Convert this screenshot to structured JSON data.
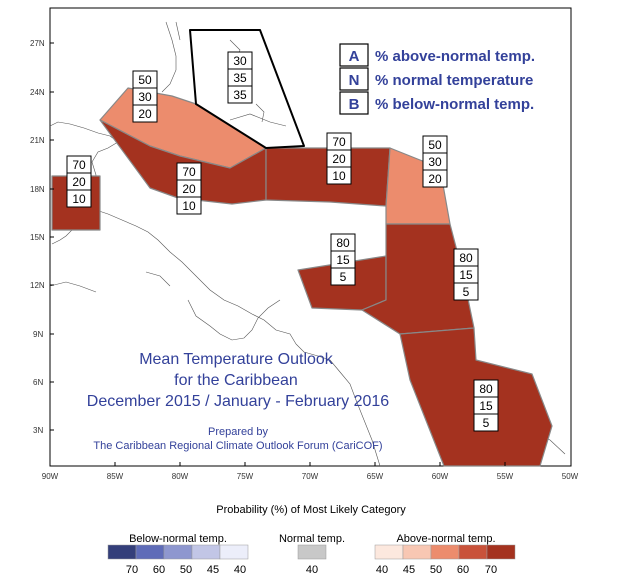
{
  "map": {
    "title_lines": [
      "Mean Temperature Outlook",
      "for the Caribbean",
      "December 2015 / January - February 2016"
    ],
    "prepared_by": [
      "Prepared by",
      "The Caribbean Regional Climate Outlook Forum (CariCOF)"
    ],
    "key": [
      {
        "letter": "A",
        "text": "% above-normal temp."
      },
      {
        "letter": "N",
        "text": "% normal temperature"
      },
      {
        "letter": "B",
        "text": "% below-normal temp."
      }
    ],
    "lat_ticks": [
      "27N",
      "24N",
      "21N",
      "18N",
      "15N",
      "12N",
      "9N",
      "6N",
      "3N"
    ],
    "lon_ticks": [
      "90W",
      "85W",
      "80W",
      "75W",
      "70W",
      "65W",
      "60W",
      "55W",
      "50W"
    ],
    "probability_boxes": [
      {
        "region": "bahamas-north",
        "values": [
          "30",
          "35",
          "35"
        ]
      },
      {
        "region": "cuba-bahamas-south",
        "values": [
          "50",
          "30",
          "20"
        ]
      },
      {
        "region": "belize",
        "values": [
          "70",
          "20",
          "10"
        ]
      },
      {
        "region": "jamaica-cayman",
        "values": [
          "70",
          "20",
          "10"
        ]
      },
      {
        "region": "hispaniola-puerto-rico",
        "values": [
          "70",
          "20",
          "10"
        ]
      },
      {
        "region": "northern-leewards",
        "values": [
          "50",
          "30",
          "20"
        ]
      },
      {
        "region": "abc-islands",
        "values": [
          "80",
          "15",
          "5"
        ]
      },
      {
        "region": "windwards-trinidad",
        "values": [
          "80",
          "15",
          "5"
        ]
      },
      {
        "region": "guianas",
        "values": [
          "80",
          "15",
          "5"
        ]
      }
    ]
  },
  "legend": {
    "title": "Probability (%) of Most Likely Category",
    "groups": [
      {
        "label": "Below-normal temp.",
        "values": [
          "70",
          "60",
          "50",
          "45",
          "40"
        ],
        "colors": [
          "#343f7a",
          "#5f6cb8",
          "#8e97cf",
          "#c2c6e6",
          "#eceefa"
        ]
      },
      {
        "label": "Normal temp.",
        "values": [
          "40"
        ],
        "colors": [
          "#c8c8c8"
        ]
      },
      {
        "label": "Above-normal temp.",
        "values": [
          "40",
          "45",
          "50",
          "60",
          "70"
        ],
        "colors": [
          "#fce8de",
          "#f8c7b3",
          "#ec8c6d",
          "#c9523a",
          "#a4321f"
        ]
      }
    ]
  },
  "colors": {
    "above70": "#a4321f",
    "above50": "#ec8c6d",
    "region_border": "#888888",
    "title_blue": "#33419a"
  }
}
